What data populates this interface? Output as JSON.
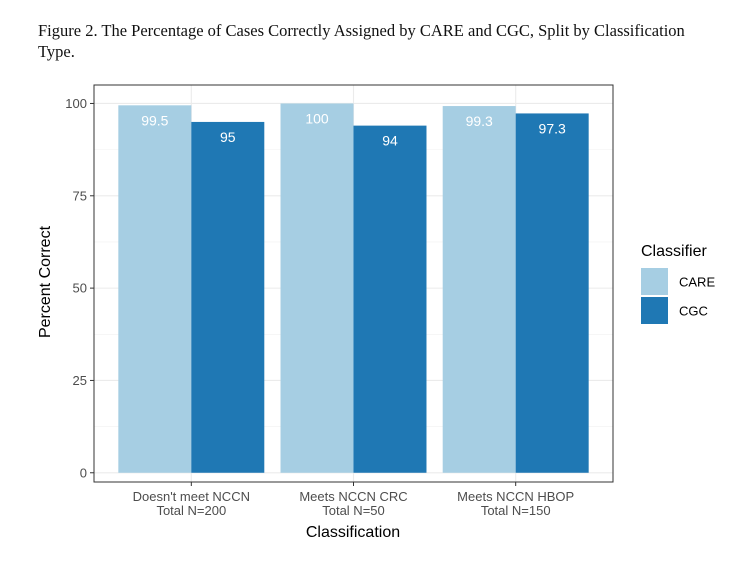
{
  "figure_title": "Figure 2. The Percentage of Cases Correctly Assigned by CARE and CGC, Split by Classification Type.",
  "chart_data": {
    "type": "bar",
    "categories": [
      [
        "Doesn't meet NCCN",
        "Total N=200"
      ],
      [
        "Meets NCCN CRC",
        "Total N=50"
      ],
      [
        "Meets NCCN HBOP",
        "Total N=150"
      ]
    ],
    "series": [
      {
        "name": "CARE",
        "values": [
          99.5,
          100,
          99.3
        ],
        "labels": [
          "99.5",
          "100",
          "99.3"
        ],
        "color": "#a6cee3"
      },
      {
        "name": "CGC",
        "values": [
          95,
          94,
          97.3
        ],
        "labels": [
          "95",
          "94",
          "97.3"
        ],
        "color": "#1f78b4"
      }
    ],
    "xlabel": "Classification",
    "ylabel": "Percent Correct",
    "ylim": [
      -2.5,
      105
    ],
    "yticks": [
      0,
      25,
      50,
      75,
      100
    ],
    "ytick_labels": [
      "0",
      "25",
      "50",
      "75",
      "100"
    ],
    "grid": true,
    "legend": {
      "title": "Classifier",
      "position": "right"
    },
    "panel_border": true
  }
}
